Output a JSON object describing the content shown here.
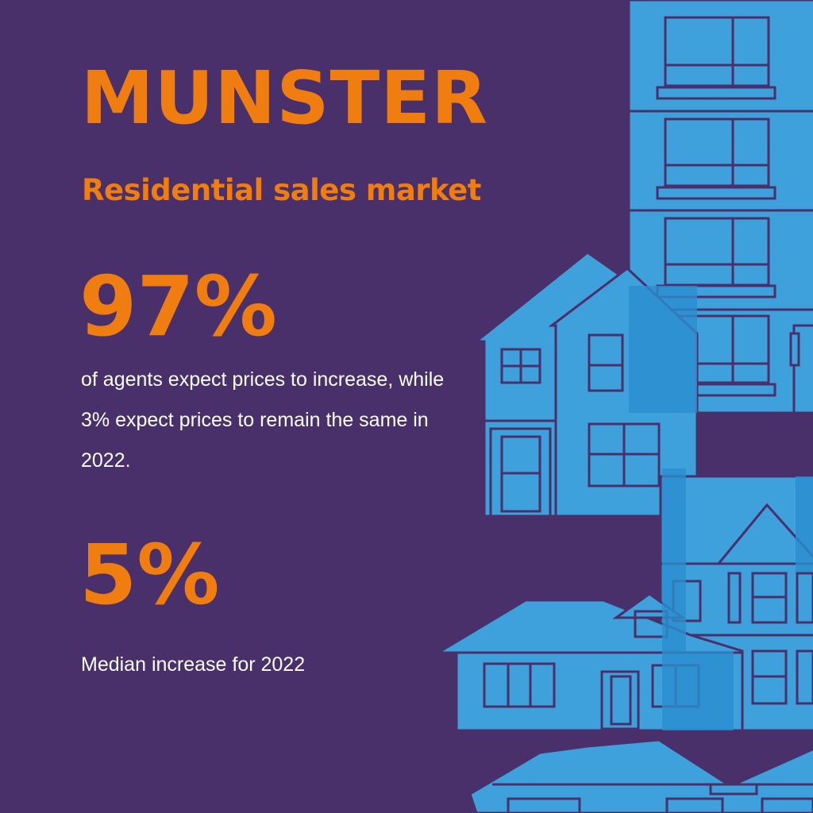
{
  "title": "MUNSTER",
  "subtitle": "Residential sales market",
  "stats": [
    {
      "value": "97%",
      "description": "of agents expect prices to increase, while 3% expect prices to remain the same in 2022."
    },
    {
      "value": "5%",
      "description": "Median increase for 2022"
    }
  ],
  "colors": {
    "background": "#4a306a",
    "accent": "#f07d0f",
    "text": "#ffffff",
    "building": "#3fa1db",
    "building_dark": "#2b8fd0",
    "outline": "#4a306a"
  },
  "illustration": {
    "icon": "houses-and-apartment-illustration"
  }
}
